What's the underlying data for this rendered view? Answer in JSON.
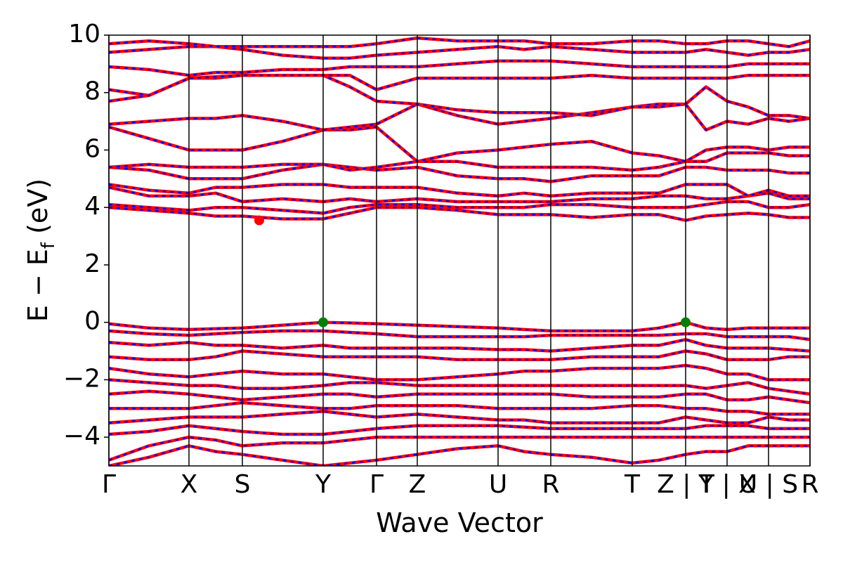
{
  "chart_data": {
    "type": "band-structure",
    "xlabel": "Wave Vector",
    "ylabel": [
      "E − E",
      "f",
      " (eV)"
    ],
    "xlim": [
      0,
      9.98
    ],
    "ylim": [
      -5,
      10
    ],
    "yticks": [
      {
        "value": -4,
        "label": "−4"
      },
      {
        "value": -2,
        "label": "−2"
      },
      0,
      2,
      4,
      6,
      8,
      10
    ],
    "xticks": [
      {
        "value": 0,
        "label": "Γ"
      },
      {
        "value": 1.14,
        "label": "X"
      },
      {
        "value": 1.9,
        "label": "S"
      },
      {
        "value": 3.05,
        "label": "Y"
      },
      {
        "value": 3.81,
        "label": "Γ"
      },
      {
        "value": 4.39,
        "label": "Z"
      },
      {
        "value": 5.54,
        "label": "U"
      },
      {
        "value": 6.29,
        "label": "R"
      },
      {
        "value": 7.45,
        "label": "T"
      },
      {
        "value": 8.21,
        "label": "Z | T"
      },
      {
        "value": 8.8,
        "label": "Y | X"
      },
      {
        "value": 9.39,
        "label": "U | S"
      },
      {
        "value": 9.98,
        "label": "R"
      }
    ],
    "spin_colors": [
      "#ff0000",
      "#0000ff"
    ],
    "x": [
      0,
      0.57,
      1.14,
      1.52,
      1.9,
      2.47,
      3.05,
      3.43,
      3.81,
      4.39,
      4.96,
      5.54,
      5.91,
      6.29,
      6.87,
      7.45,
      7.83,
      8.21,
      8.5,
      8.8,
      9.1,
      9.39,
      9.68,
      9.98
    ],
    "bands": [
      [
        4.0,
        3.9,
        3.8,
        3.7,
        3.7,
        3.6,
        3.6,
        3.8,
        4.0,
        4.0,
        3.9,
        3.75,
        3.75,
        3.75,
        3.65,
        3.75,
        3.75,
        3.55,
        3.7,
        3.75,
        3.8,
        3.75,
        3.65,
        3.65
      ],
      [
        4.1,
        4.0,
        3.9,
        4.0,
        4.0,
        3.9,
        3.8,
        4.0,
        4.1,
        4.1,
        4.0,
        4.0,
        4.0,
        4.1,
        4.1,
        4.0,
        4.0,
        4.0,
        4.1,
        4.2,
        4.2,
        4.0,
        4.0,
        4.1
      ],
      [
        4.7,
        4.4,
        4.4,
        4.5,
        4.2,
        4.3,
        4.2,
        4.3,
        4.2,
        4.3,
        4.2,
        4.2,
        4.2,
        4.2,
        4.3,
        4.3,
        4.4,
        4.4,
        4.3,
        4.3,
        4.4,
        4.5,
        4.3,
        4.3
      ],
      [
        4.8,
        4.6,
        4.5,
        4.7,
        4.7,
        4.8,
        4.8,
        4.7,
        4.7,
        4.7,
        4.5,
        4.4,
        4.5,
        4.4,
        4.5,
        4.5,
        4.5,
        4.8,
        4.8,
        4.8,
        4.4,
        4.6,
        4.4,
        4.4
      ],
      [
        5.4,
        5.3,
        5.0,
        5.0,
        5.0,
        5.3,
        5.5,
        5.4,
        5.3,
        5.4,
        5.1,
        5.0,
        5.0,
        4.9,
        5.1,
        5.1,
        5.1,
        5.4,
        5.4,
        5.3,
        5.3,
        5.3,
        5.2,
        5.2
      ],
      [
        5.4,
        5.5,
        5.4,
        5.4,
        5.4,
        5.5,
        5.5,
        5.3,
        5.4,
        5.6,
        5.6,
        5.4,
        5.4,
        5.4,
        5.4,
        5.3,
        5.4,
        5.6,
        5.6,
        5.9,
        5.9,
        5.9,
        5.8,
        5.8
      ],
      [
        6.8,
        6.4,
        6.0,
        6.0,
        6.0,
        6.3,
        6.7,
        6.7,
        6.8,
        5.6,
        5.9,
        6.0,
        6.1,
        6.2,
        6.3,
        5.9,
        5.8,
        5.6,
        6.0,
        6.1,
        6.1,
        6.0,
        6.1,
        6.1
      ],
      [
        6.9,
        7.0,
        7.1,
        7.1,
        7.2,
        7.0,
        6.7,
        6.8,
        6.9,
        7.6,
        7.2,
        6.9,
        7.0,
        7.1,
        7.3,
        7.5,
        7.6,
        7.6,
        6.7,
        7.0,
        6.9,
        7.1,
        7.0,
        7.1
      ],
      [
        7.7,
        7.9,
        8.5,
        8.5,
        8.6,
        8.6,
        8.6,
        8.2,
        7.7,
        7.6,
        7.4,
        7.3,
        7.3,
        7.3,
        7.2,
        7.5,
        7.5,
        7.6,
        8.2,
        7.7,
        7.5,
        7.2,
        7.2,
        7.1
      ],
      [
        8.1,
        7.9,
        8.5,
        8.55,
        8.6,
        8.6,
        8.6,
        8.6,
        8.1,
        8.5,
        8.5,
        8.5,
        8.5,
        8.5,
        8.6,
        8.5,
        8.5,
        8.5,
        8.5,
        8.5,
        8.6,
        8.6,
        8.6,
        8.6
      ],
      [
        8.9,
        8.8,
        8.6,
        8.7,
        8.7,
        8.8,
        8.8,
        8.9,
        8.9,
        8.9,
        9.0,
        9.1,
        9.1,
        9.1,
        9.0,
        8.9,
        8.9,
        8.9,
        8.9,
        8.9,
        9.0,
        9.0,
        9.0,
        9.0
      ],
      [
        9.4,
        9.5,
        9.6,
        9.6,
        9.5,
        9.3,
        9.2,
        9.2,
        9.3,
        9.4,
        9.5,
        9.6,
        9.5,
        9.6,
        9.5,
        9.4,
        9.4,
        9.4,
        9.5,
        9.4,
        9.3,
        9.4,
        9.4,
        9.5
      ],
      [
        9.7,
        9.8,
        9.7,
        9.6,
        9.6,
        9.6,
        9.6,
        9.6,
        9.7,
        9.9,
        9.8,
        9.8,
        9.8,
        9.7,
        9.7,
        9.8,
        9.8,
        9.7,
        9.7,
        9.8,
        9.8,
        9.7,
        9.6,
        9.8
      ],
      [
        -0.05,
        -0.2,
        -0.25,
        -0.22,
        -0.2,
        -0.1,
        0,
        -0.02,
        -0.05,
        -0.1,
        -0.15,
        -0.2,
        -0.25,
        -0.3,
        -0.3,
        -0.3,
        -0.2,
        0,
        -0.2,
        -0.25,
        -0.2,
        -0.2,
        -0.2,
        -0.2
      ],
      [
        -0.3,
        -0.4,
        -0.45,
        -0.4,
        -0.35,
        -0.3,
        -0.3,
        -0.35,
        -0.4,
        -0.5,
        -0.5,
        -0.5,
        -0.5,
        -0.45,
        -0.45,
        -0.45,
        -0.45,
        -0.4,
        -0.4,
        -0.5,
        -0.5,
        -0.5,
        -0.5,
        -0.6
      ],
      [
        -0.7,
        -0.8,
        -0.7,
        -0.8,
        -0.8,
        -0.9,
        -0.8,
        -0.9,
        -0.9,
        -0.9,
        -0.9,
        -0.95,
        -0.95,
        -1.0,
        -0.9,
        -0.8,
        -0.8,
        -0.6,
        -0.8,
        -0.9,
        -0.9,
        -0.9,
        -0.95,
        -1.0
      ],
      [
        -1.2,
        -1.3,
        -1.3,
        -1.2,
        -1.0,
        -1.1,
        -1.2,
        -1.2,
        -1.2,
        -1.2,
        -1.3,
        -1.3,
        -1.3,
        -1.3,
        -1.2,
        -1.2,
        -1.2,
        -1.0,
        -1.1,
        -1.3,
        -1.3,
        -1.3,
        -1.2,
        -1.2
      ],
      [
        -1.6,
        -1.8,
        -1.9,
        -1.8,
        -1.7,
        -1.8,
        -1.8,
        -1.9,
        -2.0,
        -2.0,
        -1.9,
        -1.8,
        -1.7,
        -1.7,
        -1.6,
        -1.6,
        -1.6,
        -1.5,
        -1.6,
        -1.8,
        -1.8,
        -2.0,
        -2.0,
        -2.0
      ],
      [
        -2.0,
        -2.1,
        -2.2,
        -2.2,
        -2.3,
        -2.3,
        -2.2,
        -2.1,
        -2.1,
        -2.2,
        -2.2,
        -2.2,
        -2.2,
        -2.2,
        -2.2,
        -2.2,
        -2.2,
        -2.2,
        -2.3,
        -2.2,
        -2.1,
        -2.3,
        -2.4,
        -2.5
      ],
      [
        -2.5,
        -2.4,
        -2.5,
        -2.6,
        -2.7,
        -2.6,
        -2.5,
        -2.5,
        -2.6,
        -2.5,
        -2.5,
        -2.5,
        -2.5,
        -2.5,
        -2.6,
        -2.6,
        -2.6,
        -2.5,
        -2.5,
        -2.7,
        -2.7,
        -2.6,
        -2.7,
        -2.8
      ],
      [
        -3.0,
        -3.0,
        -3.0,
        -2.9,
        -2.8,
        -2.9,
        -3.0,
        -3.0,
        -2.9,
        -2.9,
        -2.9,
        -3.0,
        -3.0,
        -3.0,
        -3.0,
        -2.9,
        -2.9,
        -3.0,
        -3.0,
        -3.1,
        -3.1,
        -3.2,
        -3.2,
        -3.2
      ],
      [
        -3.5,
        -3.4,
        -3.3,
        -3.3,
        -3.3,
        -3.2,
        -3.1,
        -3.2,
        -3.3,
        -3.2,
        -3.3,
        -3.4,
        -3.4,
        -3.5,
        -3.5,
        -3.5,
        -3.5,
        -3.3,
        -3.4,
        -3.5,
        -3.5,
        -3.3,
        -3.4,
        -3.4
      ],
      [
        -3.9,
        -3.8,
        -3.6,
        -3.7,
        -3.8,
        -3.9,
        -3.9,
        -3.8,
        -3.7,
        -3.6,
        -3.6,
        -3.6,
        -3.65,
        -3.7,
        -3.7,
        -3.7,
        -3.7,
        -3.7,
        -3.6,
        -3.6,
        -3.6,
        -3.7,
        -3.7,
        -3.7
      ],
      [
        -4.8,
        -4.3,
        -4.0,
        -4.1,
        -4.3,
        -4.2,
        -4.2,
        -4.1,
        -4.0,
        -4.0,
        -4.0,
        -4.0,
        -4.0,
        -4.0,
        -4.0,
        -4.0,
        -4.0,
        -4.0,
        -4.0,
        -4.0,
        -4.0,
        -4.0,
        -4.0,
        -4.0
      ],
      [
        -5.0,
        -4.7,
        -4.3,
        -4.5,
        -4.6,
        -4.8,
        -5.0,
        -4.9,
        -4.8,
        -4.6,
        -4.4,
        -4.3,
        -4.5,
        -4.6,
        -4.7,
        -4.9,
        -4.8,
        -4.6,
        -4.5,
        -4.5,
        -4.3,
        -4.3,
        -4.3,
        -4.3
      ]
    ],
    "markers": [
      {
        "x": 2.14,
        "y": 3.55,
        "color": "#ff0000"
      },
      {
        "x": 3.05,
        "y": 0,
        "color": "#008000"
      },
      {
        "x": 8.21,
        "y": 0,
        "color": "#008000"
      }
    ]
  }
}
